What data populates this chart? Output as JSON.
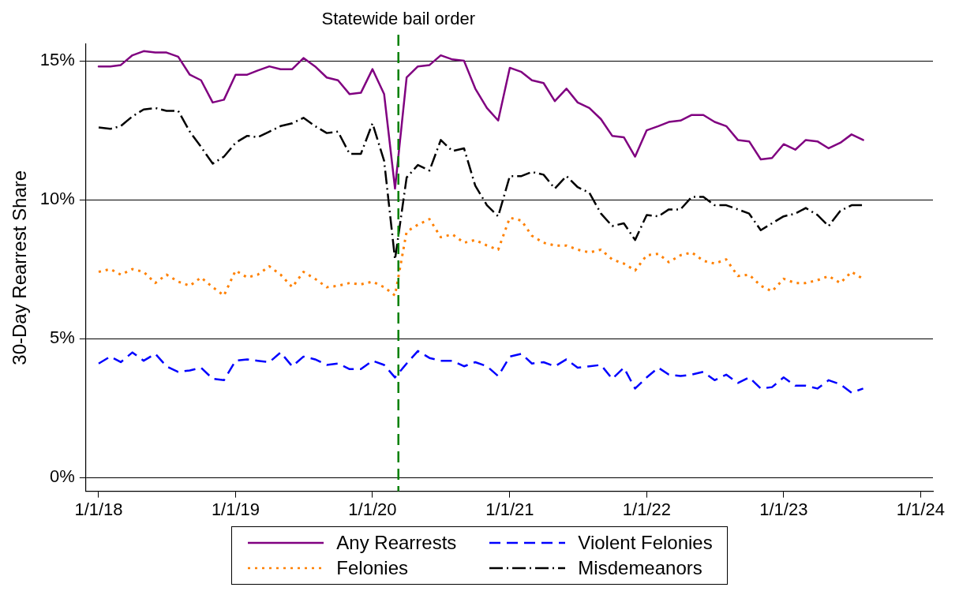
{
  "chart_data": {
    "type": "line",
    "ylabel": "30-Day Rearrest Share",
    "x": [
      "2018-01",
      "2018-02",
      "2018-03",
      "2018-04",
      "2018-05",
      "2018-06",
      "2018-07",
      "2018-08",
      "2018-09",
      "2018-10",
      "2018-11",
      "2018-12",
      "2019-01",
      "2019-02",
      "2019-03",
      "2019-04",
      "2019-05",
      "2019-06",
      "2019-07",
      "2019-08",
      "2019-09",
      "2019-10",
      "2019-11",
      "2019-12",
      "2020-01",
      "2020-02",
      "2020-03",
      "2020-04",
      "2020-05",
      "2020-06",
      "2020-07",
      "2020-08",
      "2020-09",
      "2020-10",
      "2020-11",
      "2020-12",
      "2021-01",
      "2021-02",
      "2021-03",
      "2021-04",
      "2021-05",
      "2021-06",
      "2021-07",
      "2021-08",
      "2021-09",
      "2021-10",
      "2021-11",
      "2021-12",
      "2022-01",
      "2022-02",
      "2022-03",
      "2022-04",
      "2022-05",
      "2022-06",
      "2022-07",
      "2022-08",
      "2022-09",
      "2022-10",
      "2022-11",
      "2022-12",
      "2023-01",
      "2023-02",
      "2023-03",
      "2023-04",
      "2023-05",
      "2023-06",
      "2023-07",
      "2023-08"
    ],
    "series": [
      {
        "name": "Any Rearrests",
        "color": "#800080",
        "line_style": "solid",
        "values": [
          14.8,
          14.8,
          14.85,
          15.2,
          15.35,
          15.3,
          15.3,
          15.15,
          14.5,
          14.3,
          13.5,
          13.6,
          14.5,
          14.5,
          14.65,
          14.8,
          14.7,
          14.7,
          15.1,
          14.8,
          14.4,
          14.3,
          13.8,
          13.85,
          14.7,
          13.8,
          10.4,
          14.4,
          14.8,
          14.85,
          15.2,
          15.05,
          15.0,
          14.0,
          13.3,
          12.85,
          14.75,
          14.6,
          14.3,
          14.2,
          13.55,
          14.0,
          13.5,
          13.3,
          12.9,
          12.3,
          12.25,
          11.55,
          12.5,
          12.65,
          12.8,
          12.85,
          13.05,
          13.05,
          12.8,
          12.65,
          12.15,
          12.1,
          11.45,
          11.5,
          12.0,
          11.8,
          12.15,
          12.1,
          11.85,
          12.05,
          12.35,
          12.15
        ]
      },
      {
        "name": "Violent Felonies",
        "color": "#0000ff",
        "line_style": "dashed",
        "values": [
          4.1,
          4.35,
          4.15,
          4.5,
          4.2,
          4.45,
          4.0,
          3.8,
          3.85,
          3.95,
          3.55,
          3.5,
          4.2,
          4.25,
          4.2,
          4.15,
          4.5,
          4.0,
          4.35,
          4.25,
          4.05,
          4.1,
          3.9,
          3.9,
          4.2,
          4.05,
          3.6,
          4.1,
          4.55,
          4.3,
          4.2,
          4.2,
          4.0,
          4.15,
          4.0,
          3.65,
          4.35,
          4.45,
          4.1,
          4.15,
          4.0,
          4.25,
          3.95,
          4.0,
          4.05,
          3.55,
          3.95,
          3.2,
          3.6,
          3.95,
          3.7,
          3.65,
          3.7,
          3.8,
          3.5,
          3.7,
          3.4,
          3.6,
          3.2,
          3.25,
          3.6,
          3.3,
          3.3,
          3.2,
          3.5,
          3.35,
          3.05,
          3.2
        ]
      },
      {
        "name": "Felonies",
        "color": "#ff8000",
        "line_style": "dotted",
        "values": [
          7.4,
          7.5,
          7.3,
          7.5,
          7.4,
          7.0,
          7.3,
          7.05,
          6.9,
          7.2,
          6.85,
          6.55,
          7.45,
          7.2,
          7.3,
          7.6,
          7.3,
          6.85,
          7.4,
          7.15,
          6.85,
          6.9,
          7.0,
          6.95,
          7.05,
          6.85,
          6.55,
          8.85,
          9.1,
          9.3,
          8.65,
          8.75,
          8.45,
          8.55,
          8.35,
          8.2,
          9.35,
          9.25,
          8.7,
          8.45,
          8.35,
          8.35,
          8.2,
          8.1,
          8.2,
          7.85,
          7.7,
          7.45,
          8.0,
          8.05,
          7.75,
          8.0,
          8.1,
          7.8,
          7.7,
          7.85,
          7.25,
          7.3,
          6.9,
          6.7,
          7.15,
          7.0,
          7.0,
          7.1,
          7.25,
          7.0,
          7.4,
          7.15
        ]
      },
      {
        "name": "Misdemeanors",
        "color": "#000000",
        "line_style": "dashdot",
        "values": [
          12.6,
          12.55,
          12.65,
          13.0,
          13.25,
          13.3,
          13.2,
          13.2,
          12.45,
          11.9,
          11.3,
          11.55,
          12.05,
          12.3,
          12.25,
          12.45,
          12.65,
          12.75,
          12.95,
          12.65,
          12.4,
          12.45,
          11.65,
          11.65,
          12.75,
          11.4,
          7.85,
          10.8,
          11.25,
          11.05,
          12.15,
          11.75,
          11.85,
          10.5,
          9.8,
          9.4,
          10.85,
          10.85,
          11.0,
          10.9,
          10.4,
          10.85,
          10.45,
          10.25,
          9.5,
          9.05,
          9.15,
          8.55,
          9.45,
          9.4,
          9.65,
          9.65,
          10.1,
          10.1,
          9.8,
          9.8,
          9.65,
          9.5,
          8.9,
          9.15,
          9.4,
          9.5,
          9.7,
          9.45,
          9.05,
          9.6,
          9.8,
          9.8
        ]
      }
    ],
    "xlim": [
      "2017-11-28",
      "2024-02-03"
    ],
    "xticks": [
      {
        "value": "2018-01-01",
        "label": "1/1/18"
      },
      {
        "value": "2019-01-01",
        "label": "1/1/19"
      },
      {
        "value": "2020-01-01",
        "label": "1/1/20"
      },
      {
        "value": "2021-01-01",
        "label": "1/1/21"
      },
      {
        "value": "2022-01-01",
        "label": "1/1/22"
      },
      {
        "value": "2023-01-01",
        "label": "1/1/23"
      },
      {
        "value": "2024-01-01",
        "label": "1/1/24"
      }
    ],
    "ylim": [
      -0.5,
      15.6
    ],
    "yticks": [
      {
        "value": 0,
        "label": "0%"
      },
      {
        "value": 5,
        "label": "5%"
      },
      {
        "value": 10,
        "label": "10%"
      },
      {
        "value": 15,
        "label": "15%"
      }
    ],
    "ref_lines": [
      {
        "axis": "x",
        "value": "2020-03-10",
        "label": "Statewide bail order",
        "color": "#008000",
        "line_style": "dashed"
      }
    ],
    "grid": "y",
    "legend": "bottom",
    "marker": "none"
  }
}
